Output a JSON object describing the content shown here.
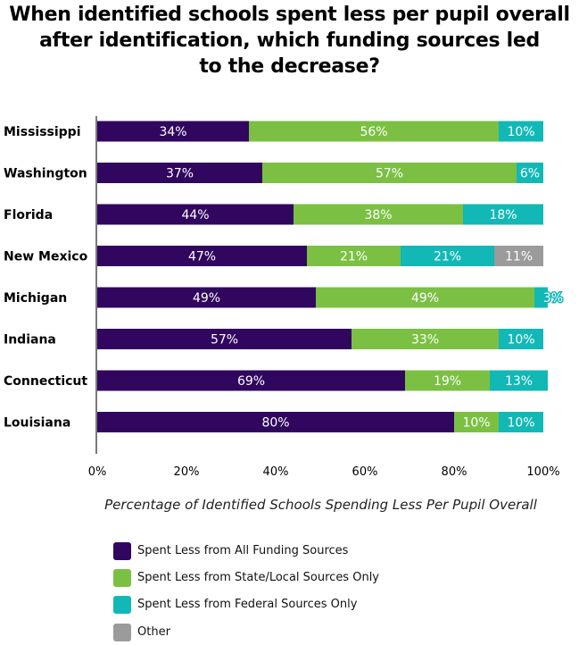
{
  "title_lines": [
    "When identified schools spent less per pupil overall",
    "after identification, which funding sources led",
    "to the decrease?"
  ],
  "colors": {
    "all_sources": "#30065e",
    "state_local": "#7bc043",
    "federal": "#11b8b6",
    "other": "#9b9b9b"
  },
  "chart_data": {
    "type": "bar",
    "orientation": "horizontal",
    "stacked": true,
    "title": "When identified schools spent less per pupil overall after identification, which funding sources led to the decrease?",
    "xlabel": "Percentage of Identified Schools Spending Less Per Pupil Overall",
    "ylabel": "",
    "xlim": [
      0,
      100
    ],
    "x_ticks": [
      "0%",
      "20%",
      "40%",
      "60%",
      "80%",
      "100%"
    ],
    "categories": [
      "Mississippi",
      "Washington",
      "Florida",
      "New Mexico",
      "Michigan",
      "Indiana",
      "Connecticut",
      "Louisiana"
    ],
    "series": [
      {
        "name": "Spent Less from All Funding Sources",
        "color": "#30065e",
        "values": [
          34,
          37,
          44,
          47,
          49,
          57,
          69,
          80
        ]
      },
      {
        "name": "Spent Less from State/Local Sources Only",
        "color": "#7bc043",
        "values": [
          56,
          57,
          38,
          21,
          49,
          33,
          19,
          10
        ]
      },
      {
        "name": "Spent Less from Federal Sources Only",
        "color": "#11b8b6",
        "values": [
          10,
          6,
          18,
          21,
          3,
          10,
          13,
          10
        ]
      },
      {
        "name": "Other",
        "color": "#9b9b9b",
        "values": [
          0,
          0,
          0,
          11,
          0,
          0,
          0,
          0
        ]
      }
    ],
    "grid": false,
    "legend_position": "bottom-left"
  }
}
